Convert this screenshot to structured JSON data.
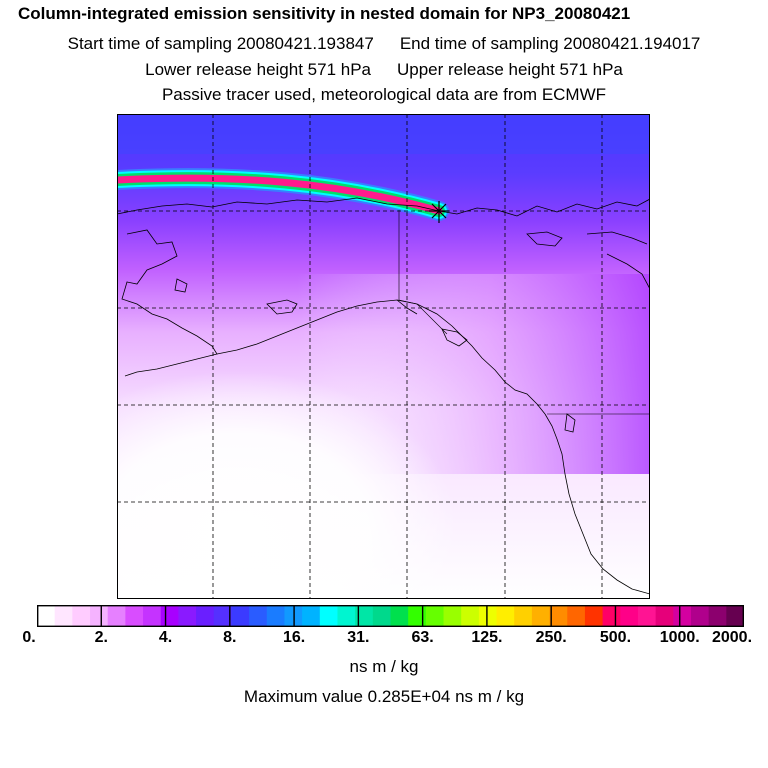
{
  "header": {
    "title": "Column-integrated emission sensitivity in nested domain for NP3_20080421",
    "start_label": "Start time of sampling 20080421.193847",
    "end_label": "End time of sampling 20080421.194017",
    "lower_label": "Lower release height  571 hPa",
    "upper_label": "Upper release height  571 hPa",
    "note": "Passive tracer used, meteorological data are from ECMWF"
  },
  "colorbar": {
    "ticks": [
      "0.",
      "2.",
      "4.",
      "8.",
      "16.",
      "31.",
      "63.",
      "125.",
      "250.",
      "500.",
      "1000.",
      "2000."
    ],
    "colors": [
      "#ffffff",
      "#ffe6ff",
      "#ffccff",
      "#f5b3ff",
      "#e680ff",
      "#d94dff",
      "#c533ff",
      "#a800ff",
      "#8a1aff",
      "#6a1fff",
      "#5530ff",
      "#3b3bff",
      "#2a5cff",
      "#1a7cff",
      "#1199ff",
      "#00b3ff",
      "#00ffff",
      "#00f5d0",
      "#00e6a6",
      "#00d98c",
      "#00e04d",
      "#33ff00",
      "#66ff00",
      "#99ff00",
      "#ccff00",
      "#eeff00",
      "#ffee00",
      "#ffd000",
      "#ffb000",
      "#ff8c00",
      "#ff6600",
      "#ff3300",
      "#ff0066",
      "#ff0088",
      "#ff1493",
      "#e6007a",
      "#d400a0",
      "#b0008c",
      "#8c006e",
      "#660050"
    ],
    "units": "ns m / kg",
    "max_text": "Maximum value  0.285E+04 ns m / kg"
  },
  "map": {
    "receptor_marker": "star",
    "gridlines": "dashed",
    "colors": {
      "plume_core": "#ff1a8c",
      "plume_edge_green": "#00e06a",
      "plume_edge_cyan": "#00ffff",
      "high_sens": "#5a2bff",
      "mid_sens": "#c040ff",
      "low_sens": "#f0c8ff"
    }
  }
}
